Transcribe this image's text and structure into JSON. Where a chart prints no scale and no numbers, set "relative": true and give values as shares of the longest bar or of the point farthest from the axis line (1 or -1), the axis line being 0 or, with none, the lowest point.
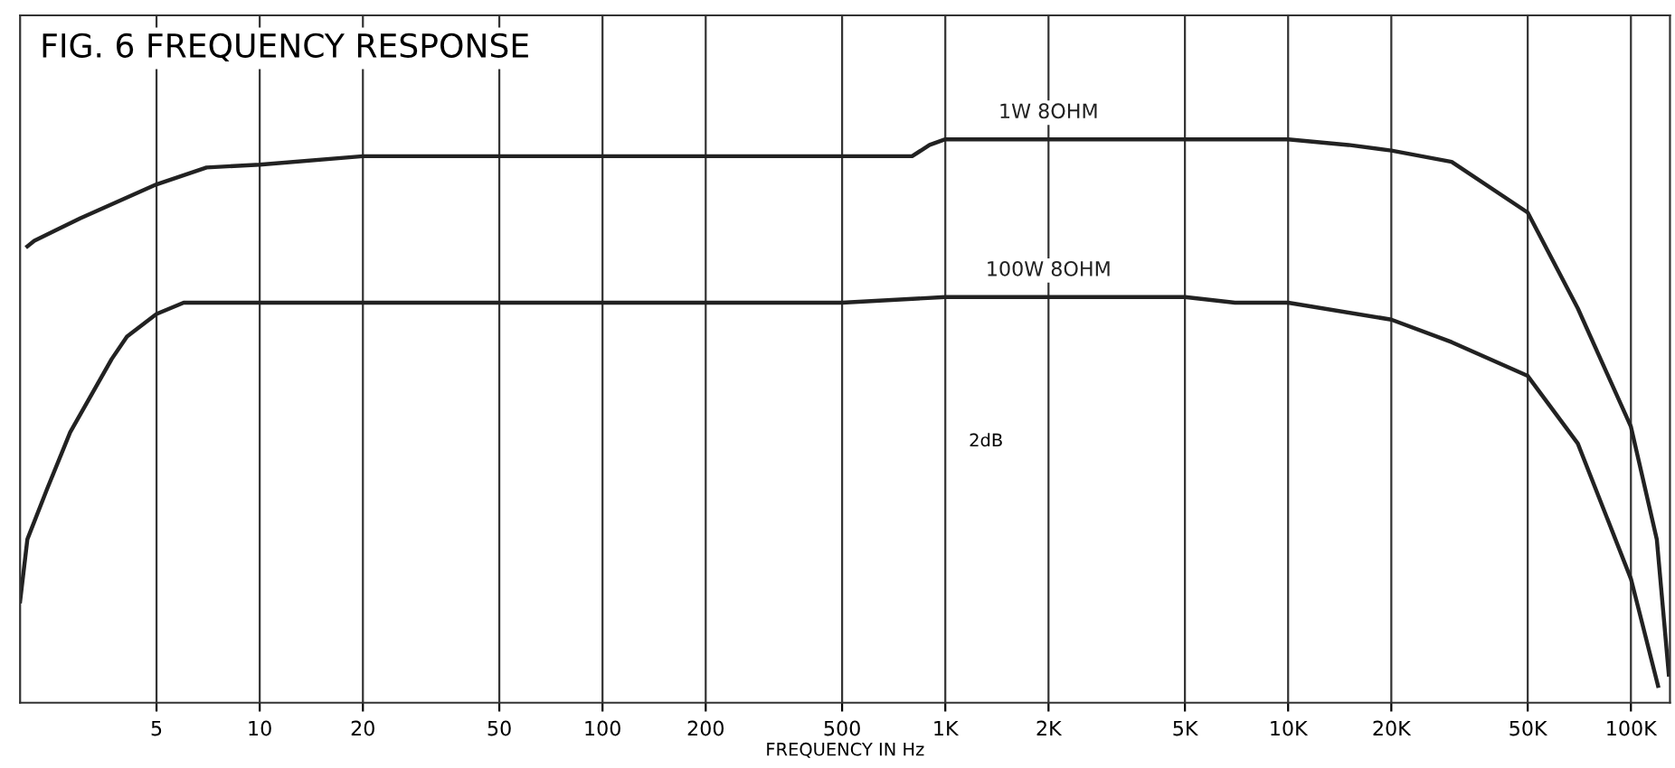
{
  "chart_data": {
    "type": "line",
    "title": "FIG. 6 FREQUENCY RESPONSE",
    "xlabel": "FREQUENCY IN Hz",
    "relative": true,
    "log": "x",
    "grid": "x",
    "line_style": "solid",
    "marker": "none",
    "xlim": [
      2,
      130000
    ],
    "xticks": [
      5,
      10,
      20,
      50,
      100,
      200,
      500,
      {
        "value": 1000,
        "label": "1K"
      },
      {
        "value": 2000,
        "label": "2K"
      },
      {
        "value": 5000,
        "label": "5K"
      },
      {
        "value": 10000,
        "label": "10K"
      },
      {
        "value": 20000,
        "label": "20K"
      },
      {
        "value": 50000,
        "label": "50K"
      },
      {
        "value": 100000,
        "label": "100K"
      }
    ],
    "series": [
      {
        "name": "1W 8OHM",
        "color": "#222222",
        "x": [
          2.1,
          2.2,
          3,
          5,
          7,
          10,
          20,
          100,
          800,
          900,
          1000,
          2000,
          10000,
          15000,
          20000,
          30000,
          50000,
          70000,
          100000,
          119000,
          129000
        ],
        "values": [
          0.81,
          0.82,
          0.86,
          0.92,
          0.95,
          0.955,
          0.97,
          0.97,
          0.97,
          0.99,
          1.0,
          1.0,
          1.0,
          0.99,
          0.98,
          0.96,
          0.87,
          0.7,
          0.49,
          0.29,
          0.05
        ]
      },
      {
        "name": "100W 8OHM",
        "color": "#222222",
        "x": [
          2.0,
          2.1,
          2.4,
          2.8,
          3.7,
          4.1,
          5,
          6,
          7,
          20,
          100,
          500,
          1000,
          2000,
          5000,
          7000,
          10000,
          20000,
          30000,
          50000,
          70000,
          100000,
          120000
        ],
        "values": [
          0.18,
          0.29,
          0.38,
          0.48,
          0.61,
          0.65,
          0.69,
          0.71,
          0.71,
          0.71,
          0.71,
          0.71,
          0.72,
          0.72,
          0.72,
          0.71,
          0.71,
          0.68,
          0.64,
          0.58,
          0.46,
          0.22,
          0.03
        ]
      }
    ],
    "annotations": [
      "2dB"
    ]
  }
}
